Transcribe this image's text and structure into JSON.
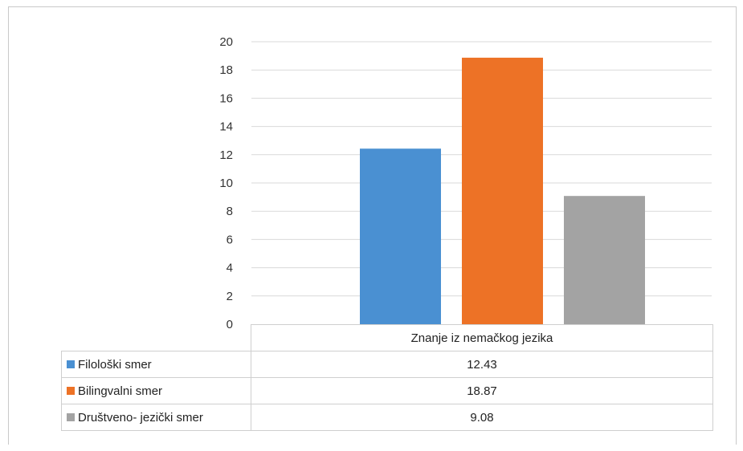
{
  "chart_data": {
    "type": "bar",
    "categories": [
      "Znanje iz nemačkog jezika"
    ],
    "series": [
      {
        "name": "Filološki smer",
        "values": [
          12.43
        ],
        "color": "#4a90d2"
      },
      {
        "name": "Bilingvalni smer",
        "values": [
          18.87
        ],
        "color": "#ed7226"
      },
      {
        "name": "Društveno- jezički smer",
        "values": [
          9.08
        ],
        "color": "#a3a3a3"
      }
    ],
    "title": "",
    "xlabel": "",
    "ylabel": "",
    "ylim": [
      0,
      20
    ],
    "yticks": [
      0,
      2,
      4,
      6,
      8,
      10,
      12,
      14,
      16,
      18,
      20
    ],
    "grid": true,
    "legend": "data-table-below"
  }
}
